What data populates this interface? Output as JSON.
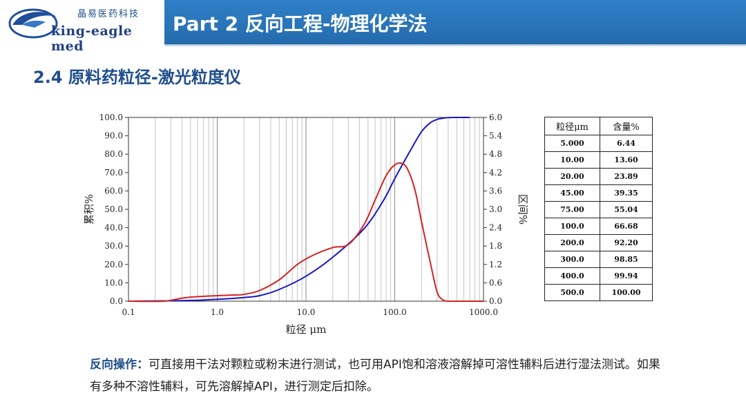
{
  "header": {
    "logo_cn": "晶易医药科技",
    "logo_en": "king-eagle med",
    "title": "Part 2 反向工程-物理化学法"
  },
  "subtitle": "2.4 原料药粒径-激光粒度仪",
  "colors": {
    "cumulative": "#1515c8",
    "interval": "#d62020",
    "title_bar": "#2a74b8",
    "heading": "#1f4e8c"
  },
  "chart_data": {
    "type": "line",
    "xlabel": "粒径 μm",
    "ylabel_left": "累积%",
    "ylabel_right": "区间%",
    "x_scale": "log",
    "xlim": [
      0.1,
      1000
    ],
    "ylim_left": [
      0,
      100
    ],
    "ylim_right": [
      0,
      6
    ],
    "x_ticks": [
      "0.1",
      "1.0",
      "10.0",
      "100.0",
      "1000.0"
    ],
    "y_ticks_left": [
      "0.0",
      "10.0",
      "20.0",
      "30.0",
      "40.0",
      "50.0",
      "60.0",
      "70.0",
      "80.0",
      "90.0",
      "100.0"
    ],
    "y_ticks_right": [
      "0.0",
      "0.6",
      "1.2",
      "1.8",
      "2.4",
      "3.0",
      "3.6",
      "4.2",
      "4.8",
      "5.4",
      "6.0"
    ],
    "grid": true,
    "series": [
      {
        "axis": "left",
        "x": [
          0.1,
          0.3,
          0.6,
          1.0,
          2.0,
          3.0,
          5.0,
          10.0,
          20.0,
          45.0,
          75.0,
          100.0,
          150.0,
          200.0,
          250.0,
          300.0,
          350.0,
          400.0,
          500.0,
          700.0
        ],
        "y": [
          0,
          0.2,
          0.5,
          1.0,
          2.0,
          3.0,
          6.4,
          13.6,
          23.9,
          39.4,
          55.0,
          66.7,
          82.0,
          92.2,
          97.0,
          98.9,
          99.6,
          99.9,
          100.0,
          100.0
        ]
      },
      {
        "axis": "right",
        "x": [
          0.1,
          0.25,
          0.4,
          0.6,
          1.0,
          1.5,
          2.0,
          3.0,
          5.0,
          8.0,
          12.0,
          20.0,
          30.0,
          45.0,
          60.0,
          80.0,
          100.0,
          120.0,
          140.0,
          170.0,
          200.0,
          250.0,
          300.0,
          350.0,
          400.0,
          500.0,
          1000.0
        ],
        "y": [
          0,
          0.0,
          0.1,
          0.15,
          0.18,
          0.2,
          0.22,
          0.35,
          0.7,
          1.2,
          1.5,
          1.75,
          1.85,
          2.5,
          3.3,
          4.1,
          4.45,
          4.5,
          4.3,
          3.6,
          2.6,
          1.3,
          0.3,
          0.04,
          0.0,
          0.0,
          0.0
        ]
      }
    ]
  },
  "table": {
    "headers": [
      "粒径μm",
      "含量%"
    ],
    "rows": [
      [
        "5.000",
        "6.44"
      ],
      [
        "10.00",
        "13.60"
      ],
      [
        "20.00",
        "23.89"
      ],
      [
        "45.00",
        "39.35"
      ],
      [
        "75.00",
        "55.04"
      ],
      [
        "100.0",
        "66.68"
      ],
      [
        "200.0",
        "92.20"
      ],
      [
        "300.0",
        "98.85"
      ],
      [
        "400.0",
        "99.94"
      ],
      [
        "500.0",
        "100.00"
      ]
    ]
  },
  "note": {
    "label": "反向操作：",
    "text": "可直接用干法对颗粒或粉末进行测试，也可用API饱和溶液溶解掉可溶性辅料后进行湿法测试。如果有多种不溶性辅料，可先溶解掉API，进行测定后扣除。"
  }
}
